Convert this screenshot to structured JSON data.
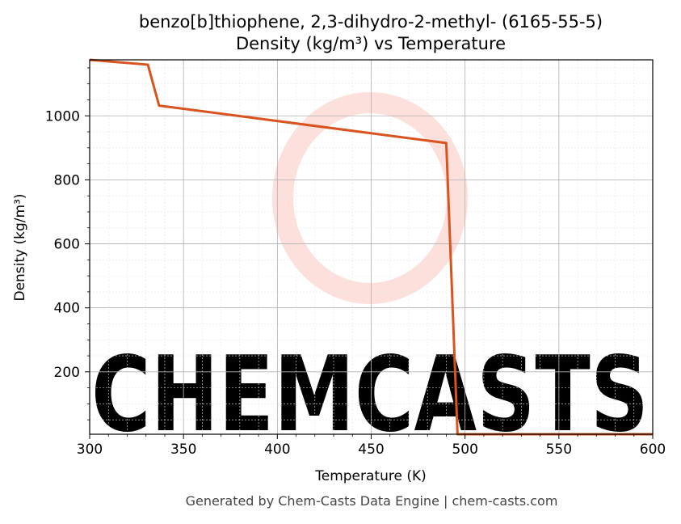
{
  "chart_data": {
    "type": "line",
    "title_line1": "benzo[b]thiophene, 2,3-dihydro-2-methyl- (6165-55-5)",
    "title_line2": "Density (kg/m³) vs Temperature",
    "xlabel": "Temperature (K)",
    "ylabel": "Density (kg/m³)",
    "xlim": [
      300,
      600
    ],
    "ylim": [
      5,
      1175
    ],
    "xticks": [
      300,
      350,
      400,
      450,
      500,
      550,
      600
    ],
    "yticks": [
      200,
      400,
      600,
      800,
      1000
    ],
    "grid": true,
    "series": [
      {
        "color": "#d9531e",
        "x": [
          300,
          331,
          337,
          490,
          496,
          600
        ],
        "y": [
          1175,
          1160,
          1032,
          915,
          5,
          5
        ]
      }
    ],
    "watermark": "CHEMCASTS",
    "watermark_color": "#fde0dc",
    "footer": "Generated by Chem-Casts Data Engine | chem-casts.com"
  }
}
